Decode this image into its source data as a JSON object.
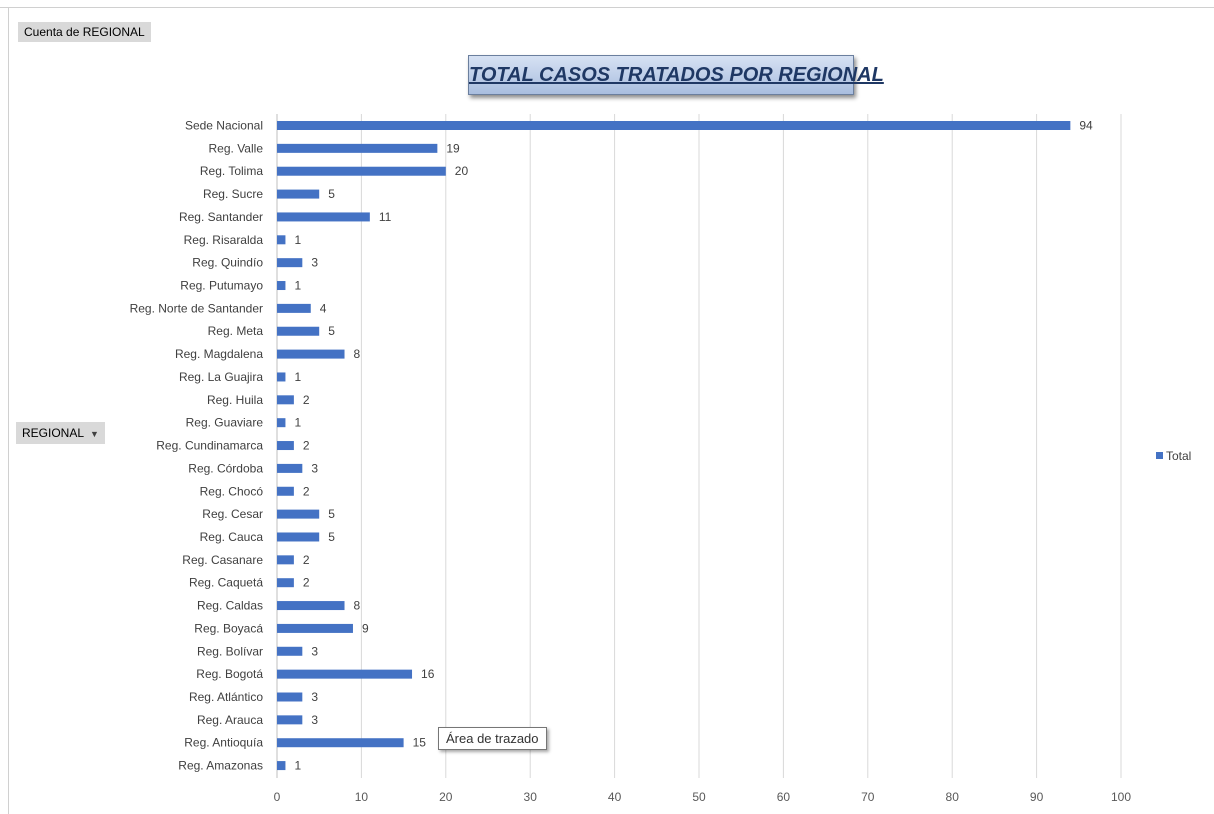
{
  "pivot": {
    "value_field": "Cuenta de REGIONAL",
    "row_field": "REGIONAL",
    "row_field_dropdown_icon": "dropdown-arrow-icon"
  },
  "tooltip": "Área de trazado",
  "chart_data": {
    "type": "bar",
    "orientation": "horizontal",
    "title": "TOTAL CASOS TRATADOS POR REGIONAL",
    "xlabel": "",
    "ylabel": "",
    "xlim": [
      0,
      100
    ],
    "ticks": [
      0,
      10,
      20,
      30,
      40,
      50,
      60,
      70,
      80,
      90,
      100
    ],
    "grid": true,
    "legend_position": "right",
    "color": "#4472c4",
    "categories": [
      "Sede Nacional",
      "Reg. Valle",
      "Reg. Tolima",
      "Reg. Sucre",
      "Reg. Santander",
      "Reg. Risaralda",
      "Reg. Quindío",
      "Reg. Putumayo",
      "Reg. Norte de Santander",
      "Reg. Meta",
      "Reg. Magdalena",
      "Reg. La Guajira",
      "Reg. Huila",
      "Reg. Guaviare",
      "Reg. Cundinamarca",
      "Reg. Córdoba",
      "Reg. Chocó",
      "Reg. Cesar",
      "Reg. Cauca",
      "Reg. Casanare",
      "Reg. Caquetá",
      "Reg. Caldas",
      "Reg. Boyacá",
      "Reg. Bolívar",
      "Reg. Bogotá",
      "Reg. Atlántico",
      "Reg. Arauca",
      "Reg. Antioquía",
      "Reg. Amazonas"
    ],
    "series": [
      {
        "name": "Total",
        "values": [
          94,
          19,
          20,
          5,
          11,
          1,
          3,
          1,
          4,
          5,
          8,
          1,
          2,
          1,
          2,
          3,
          2,
          5,
          5,
          2,
          2,
          8,
          9,
          3,
          16,
          3,
          3,
          15,
          1
        ]
      }
    ]
  }
}
